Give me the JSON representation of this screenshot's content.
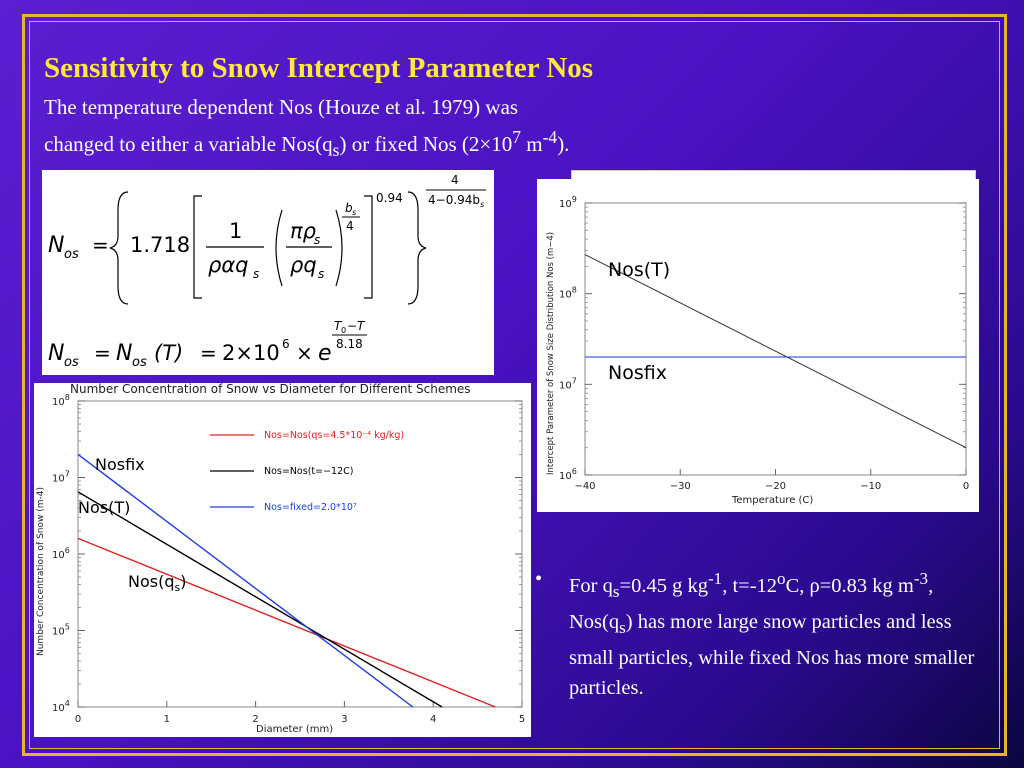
{
  "slide": {
    "title": "Sensitivity to Snow Intercept Parameter Nos",
    "subtitle_line1": "The temperature dependent Nos (Houze et al. 1979) was",
    "subtitle_line2_a": "changed to either a variable Nos(q",
    "subtitle_line2_sub": "s",
    "subtitle_line2_b": ") or fixed Nos (2×10",
    "subtitle_line2_sup": "7",
    "subtitle_line2_c": " m",
    "subtitle_line2_sup2": "-4",
    "subtitle_line2_d": ")."
  },
  "equations": {
    "eq1": {
      "lhs": "N",
      "lhs_sub": "os",
      "eq": "=",
      "coef": "1.718",
      "frac1_num": "1",
      "frac1_den": "ραq",
      "frac1_den_sub": "s",
      "frac2_num": "πρ",
      "frac2_num_sub": "s",
      "frac2_den": "ρq",
      "frac2_den_sub": "s",
      "exp_inner_num": "b",
      "exp_inner_num_sub": "s",
      "exp_inner_den": "4",
      "exp_0_94": "0.94",
      "exp_outer_num": "4",
      "exp_outer_den": "4−0.94b",
      "exp_outer_den_sub": "s"
    },
    "eq2": {
      "lhs": "N",
      "lhs_sub": "os",
      "eq1": "=",
      "mid": "N",
      "mid_sub": "os",
      "mid_arg": "(T)",
      "eq2": "=",
      "coef": "2×10",
      "coef_sup": "6",
      "times": "×",
      "e": "e",
      "exp_num": "T",
      "exp_num_sub": "0",
      "exp_num_rest": "−T",
      "exp_den": "8.18"
    }
  },
  "chart_left": {
    "chart_data": {
      "type": "line",
      "title": "Number Concentration of Snow vs Diameter for Different Schemes",
      "xlabel": "Diameter (mm)",
      "ylabel": "Number Concentration of Snow (m-4)",
      "xlim": [
        0,
        5
      ],
      "ylim": [
        10000,
        100000000
      ],
      "yscale": "log",
      "xticks": [
        "0",
        "1",
        "2",
        "3",
        "4",
        "5"
      ],
      "yticks": [
        {
          "base": "10",
          "exp": "8"
        },
        {
          "base": "10",
          "exp": "7"
        },
        {
          "base": "10",
          "exp": "6"
        },
        {
          "base": "10",
          "exp": "5"
        },
        {
          "base": "10",
          "exp": "4"
        }
      ],
      "legend_position": "top-right",
      "series": [
        {
          "name": "Nos=Nos(qs=4.5*10⁻⁴ kg/kg)",
          "color": "#e02020",
          "x": [
            0,
            4.7
          ],
          "y": [
            1600000,
            10000
          ]
        },
        {
          "name": "Nos=Nos(t=−12C)",
          "color": "#000000",
          "x": [
            0,
            4.1
          ],
          "y": [
            6500000,
            10000
          ]
        },
        {
          "name": "Nos=fixed=2.0*10⁷",
          "color": "#1a3fe0",
          "x": [
            0,
            3.77
          ],
          "y": [
            20000000,
            10000
          ]
        }
      ],
      "annotations": [
        "Nosfix",
        "Nos(T)",
        "Nos(q",
        "s",
        ")"
      ]
    }
  },
  "chart_right": {
    "chart_data": {
      "type": "line",
      "xlabel": "Temperature (C)",
      "ylabel": "Intercept Parameter of Snow Size Distribution Nos (m−4)",
      "xlim": [
        -40,
        0
      ],
      "ylim": [
        1000000,
        1000000000
      ],
      "yscale": "log",
      "xticks": [
        "−40",
        "−30",
        "−20",
        "−10",
        "0"
      ],
      "yticks": [
        {
          "base": "10",
          "exp": "9"
        },
        {
          "base": "10",
          "exp": "8"
        },
        {
          "base": "10",
          "exp": "7"
        },
        {
          "base": "10",
          "exp": "6"
        }
      ],
      "series": [
        {
          "name": "Nos(T)",
          "color": "#333333",
          "x": [
            -40,
            0
          ],
          "y": [
            270000000,
            2000000
          ]
        },
        {
          "name": "Nosfix",
          "color": "#2233cc",
          "x": [
            -40,
            0
          ],
          "y": [
            20000000,
            20000000
          ]
        }
      ],
      "annotations": [
        "Nos(T)",
        "Nosfix"
      ]
    }
  },
  "bullet": {
    "symbol": "•",
    "t1": "For q",
    "t1_sub": "s",
    "t2": "=0.45 g kg",
    "t2_sup": "-1",
    "t3": ", t=-12",
    "t3_sup": "o",
    "t4": "C, ρ=0.83 kg m",
    "t4_sup": "-3",
    "t5": ", Nos(q",
    "t5_sub": "s",
    "t6": ") has more large snow particles and less small particles, while fixed Nos has more smaller particles."
  },
  "colors": {
    "title": "#ffe93a",
    "frame": "#e8b526",
    "background": "#4a12c2"
  }
}
